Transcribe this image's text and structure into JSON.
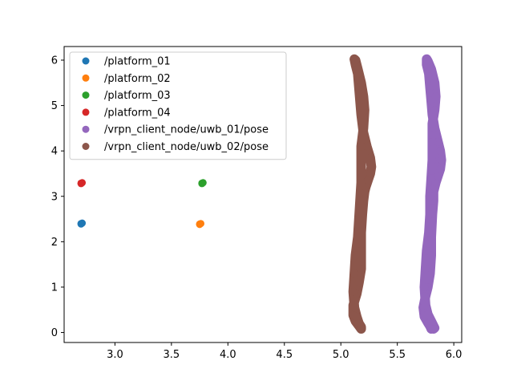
{
  "chart_data": {
    "type": "scatter",
    "title": "",
    "xlabel": "",
    "ylabel": "",
    "xlim": [
      2.55,
      6.07
    ],
    "ylim": [
      -0.22,
      6.3
    ],
    "xticks": [
      3.0,
      3.5,
      4.0,
      4.5,
      5.0,
      5.5,
      6.0
    ],
    "xtick_labels": [
      "3.0",
      "3.5",
      "4.0",
      "4.5",
      "5.0",
      "5.5",
      "6.0"
    ],
    "yticks": [
      0,
      1,
      2,
      3,
      4,
      5,
      6
    ],
    "ytick_labels": [
      "0",
      "1",
      "2",
      "3",
      "4",
      "5",
      "6"
    ],
    "grid": false,
    "legend_position": "top-left",
    "series": [
      {
        "name": "/platform_01",
        "color": "#1f77b4",
        "kind": "points",
        "x": [
          2.7,
          2.71,
          2.7
        ],
        "y": [
          2.4,
          2.41,
          2.39
        ]
      },
      {
        "name": "/platform_02",
        "color": "#ff7f0e",
        "kind": "points",
        "x": [
          3.75,
          3.76,
          3.75
        ],
        "y": [
          2.39,
          2.4,
          2.38
        ]
      },
      {
        "name": "/platform_03",
        "color": "#2ca02c",
        "kind": "points",
        "x": [
          3.77,
          3.78,
          3.77
        ],
        "y": [
          3.29,
          3.3,
          3.28
        ]
      },
      {
        "name": "/platform_04",
        "color": "#d62728",
        "kind": "points",
        "x": [
          2.7,
          2.71,
          2.7
        ],
        "y": [
          3.29,
          3.3,
          3.28
        ]
      },
      {
        "name": "/vrpn_client_node/uwb_01/pose",
        "color": "#9467bd",
        "kind": "path",
        "x": [
          5.8,
          5.79,
          5.77,
          5.74,
          5.73,
          5.75,
          5.77,
          5.79,
          5.8,
          5.8,
          5.81,
          5.82,
          5.82,
          5.83,
          5.84,
          5.86,
          5.88,
          5.89,
          5.88,
          5.86,
          5.83,
          5.81,
          5.8,
          5.79,
          5.78,
          5.76,
          5.76,
          5.77,
          5.8,
          5.83,
          5.84,
          5.83,
          5.81,
          5.81,
          5.81,
          5.8,
          5.79,
          5.79,
          5.78,
          5.76,
          5.75,
          5.74,
          5.75,
          5.77,
          5.8,
          5.82,
          5.83,
          5.82
        ],
        "y": [
          0.08,
          0.14,
          0.22,
          0.35,
          0.55,
          0.8,
          1.0,
          1.3,
          1.7,
          2.1,
          2.6,
          2.9,
          3.1,
          3.2,
          3.3,
          3.45,
          3.6,
          3.8,
          4.0,
          4.2,
          4.5,
          4.8,
          5.1,
          5.4,
          5.7,
          5.9,
          6.02,
          5.98,
          5.8,
          5.5,
          5.2,
          4.9,
          4.6,
          4.2,
          3.8,
          3.4,
          3.0,
          2.6,
          2.2,
          1.8,
          1.4,
          1.0,
          0.6,
          0.4,
          0.25,
          0.15,
          0.1,
          0.08
        ]
      },
      {
        "name": "/vrpn_client_node/uwb_02/pose",
        "color": "#8c564b",
        "kind": "path",
        "x": [
          5.18,
          5.16,
          5.13,
          5.11,
          5.11,
          5.14,
          5.16,
          5.18,
          5.18,
          5.18,
          5.19,
          5.2,
          5.21,
          5.22,
          5.24,
          5.26,
          5.27,
          5.26,
          5.23,
          5.2,
          5.18,
          5.17,
          5.16,
          5.15,
          5.13,
          5.12,
          5.13,
          5.15,
          5.18,
          5.2,
          5.21,
          5.2,
          5.18,
          5.18,
          5.18,
          5.17,
          5.16,
          5.15,
          5.13,
          5.12,
          5.11,
          5.12,
          5.14,
          5.16,
          5.18,
          5.18
        ],
        "y": [
          0.08,
          0.15,
          0.25,
          0.38,
          0.6,
          0.85,
          1.1,
          1.4,
          1.8,
          2.2,
          2.6,
          2.9,
          3.1,
          3.2,
          3.35,
          3.5,
          3.65,
          3.85,
          4.1,
          4.4,
          4.8,
          5.1,
          5.4,
          5.7,
          5.9,
          6.02,
          6.0,
          5.8,
          5.5,
          5.2,
          4.9,
          4.5,
          4.1,
          3.7,
          3.3,
          2.9,
          2.5,
          2.1,
          1.7,
          1.3,
          0.9,
          0.55,
          0.35,
          0.2,
          0.12,
          0.08
        ]
      }
    ]
  }
}
